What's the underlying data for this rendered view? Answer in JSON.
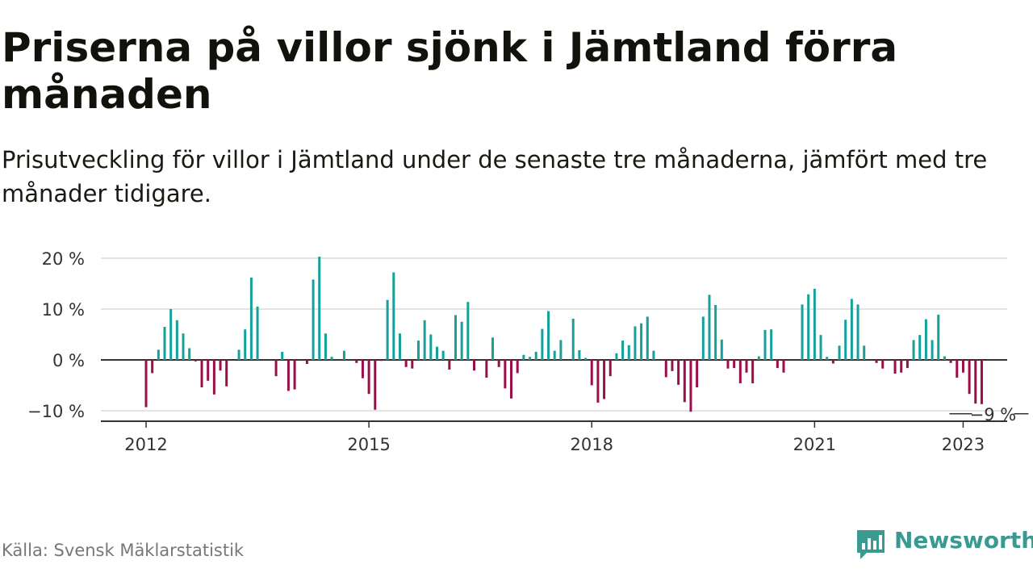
{
  "title": "Priserna på villor sjönk i Jämtland förra månaden",
  "subtitle": "Prisutveckling för villor i Jämtland under de senaste tre månaderna, jämfört med tre månader tidigare.",
  "source": "Källa: Svensk Mäklarstatistik",
  "brand": {
    "name": "Newsworthy",
    "color": "#3a9a92"
  },
  "colors": {
    "positive": "#16a09a",
    "negative": "#9a0f4a",
    "grid": "#dcdcdc",
    "zero": "#333333"
  },
  "chart_data": {
    "type": "bar",
    "x_start": "2012-01",
    "ylim": [
      -12,
      22
    ],
    "y_ticks": [
      {
        "value": 20,
        "label": "20 %"
      },
      {
        "value": 10,
        "label": "10 %"
      },
      {
        "value": 0,
        "label": "0 %"
      },
      {
        "value": -10,
        "label": "−10 %"
      }
    ],
    "x_ticks": [
      {
        "index": 0,
        "label": "2012"
      },
      {
        "index": 36,
        "label": "2015"
      },
      {
        "index": 72,
        "label": "2018"
      },
      {
        "index": 108,
        "label": "2021"
      },
      {
        "index": 132,
        "label": "2023"
      }
    ],
    "values": [
      -9.3,
      -2.6,
      2,
      6.5,
      10,
      7.8,
      5.2,
      2.3,
      -0.3,
      -5.4,
      -4.1,
      -6.8,
      -2.1,
      -5.2,
      0,
      2,
      6,
      16.2,
      10.5,
      0,
      0,
      -3.2,
      1.6,
      -6.1,
      -5.8,
      0,
      -0.8,
      15.8,
      20.3,
      5.2,
      0.6,
      0,
      1.8,
      0,
      -0.6,
      -3.6,
      -6.7,
      -9.8,
      -0.2,
      11.8,
      17.2,
      5.2,
      -1.4,
      -1.7,
      3.8,
      7.8,
      5,
      2.6,
      1.8,
      -1.9,
      8.8,
      7.5,
      11.4,
      -2.1,
      0,
      -3.5,
      4.4,
      -1.4,
      -5.6,
      -7.6,
      -2.6,
      1,
      0.6,
      1.6,
      6.1,
      9.6,
      1.8,
      3.9,
      0,
      8.1,
      1.9,
      0.4,
      -5,
      -8.4,
      -7.7,
      -3.2,
      1.3,
      3.8,
      2.9,
      6.6,
      7.2,
      8.5,
      1.8,
      0,
      -3.4,
      -2.2,
      -4.9,
      -8.3,
      -10.2,
      -5.4,
      8.5,
      12.8,
      10.8,
      4,
      -1.7,
      -1.6,
      -4.6,
      -2.5,
      -4.6,
      0.7,
      5.9,
      6,
      -1.6,
      -2.5,
      0,
      0,
      10.9,
      12.9,
      14,
      4.9,
      0.6,
      -0.7,
      2.8,
      7.9,
      12,
      10.9,
      2.8,
      0,
      -0.6,
      -1.7,
      0,
      -2.7,
      -2.5,
      -1.6,
      3.9,
      4.9,
      8,
      3.9,
      8.9,
      0.7,
      -0.6,
      -3.5,
      -2.5,
      -6.7,
      -8.6,
      -8.7
    ],
    "last_label": "−9 %"
  }
}
